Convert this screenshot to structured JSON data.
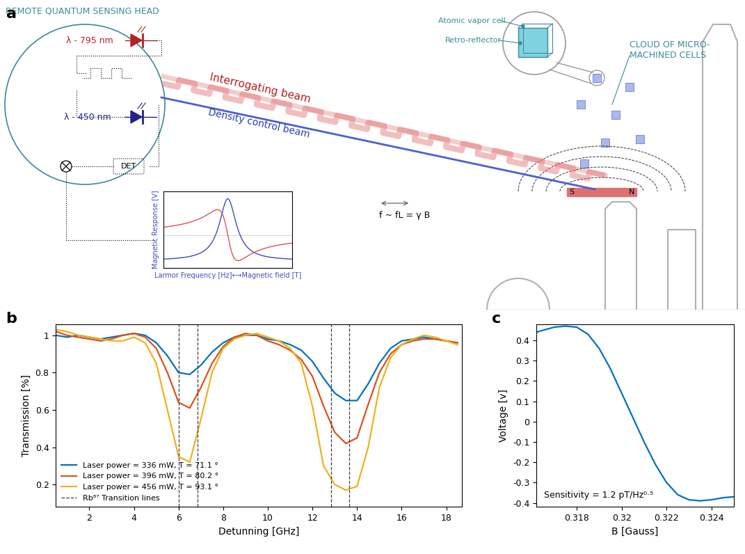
{
  "diagram": {
    "panel": "a",
    "sensing_head": {
      "title": "REMOTE QUANTUM SENSING HEAD",
      "laser_red": "λ - 795 nm",
      "laser_blue": "λ - 450 nm",
      "detector": "DET"
    },
    "beams": {
      "interrogating": "Interrogating beam",
      "density_control": "Density control beam",
      "frequency": "f ~ fL = γ B"
    },
    "inset": {
      "y_label": "Magnetic Response [V]",
      "x_label": "Larmor Frequency [Hz]⟷Magnetic field [T]"
    },
    "cell": {
      "vapor_cell": "Atomic vapor cell",
      "retro_reflector": "Retro-reflector",
      "cloud": "CLOUD OF MICRO-\nMACHINED CELLS"
    },
    "magnet": {
      "south": "S",
      "north": "N"
    }
  },
  "chart_data": [
    {
      "panel": "b",
      "type": "line",
      "x_label": "Detunning [GHz]",
      "y_label": "Transmission [%]",
      "xlim": [
        0.5,
        18.7
      ],
      "ylim": [
        0.08,
        1.06
      ],
      "xticks": [
        2,
        4,
        6,
        8,
        10,
        12,
        14,
        16,
        18
      ],
      "yticks": [
        0.2,
        0.4,
        0.6,
        0.8,
        1
      ],
      "legend": "lower left",
      "x": [
        0.5,
        1,
        1.5,
        2,
        2.5,
        3,
        3.5,
        4,
        4.5,
        5,
        5.5,
        6,
        6.5,
        7,
        7.5,
        8,
        8.5,
        9,
        9.5,
        10,
        10.5,
        11,
        11.5,
        12,
        12.5,
        13,
        13.5,
        14,
        14.5,
        15,
        15.5,
        16,
        16.5,
        17,
        17.5,
        18,
        18.5
      ],
      "series": [
        {
          "name": "Laser power = 336 mW, T = 71.1 °",
          "color": "#0072BD",
          "values": [
            1.0,
            0.99,
            1.0,
            0.99,
            0.98,
            0.99,
            1.0,
            1.01,
            1.0,
            0.96,
            0.89,
            0.8,
            0.79,
            0.84,
            0.91,
            0.96,
            0.99,
            1.0,
            1.0,
            0.98,
            0.97,
            0.95,
            0.92,
            0.86,
            0.77,
            0.69,
            0.65,
            0.65,
            0.74,
            0.85,
            0.93,
            0.97,
            0.98,
            0.99,
            0.98,
            0.97,
            0.96
          ]
        },
        {
          "name": "Laser power = 396 mW, T = 80.2 °",
          "color": "#D95319",
          "values": [
            1.02,
            1.0,
            0.99,
            0.98,
            0.97,
            0.98,
            1.0,
            1.01,
            0.99,
            0.93,
            0.8,
            0.64,
            0.61,
            0.72,
            0.85,
            0.94,
            0.99,
            1.01,
            1.0,
            0.97,
            0.95,
            0.92,
            0.87,
            0.78,
            0.62,
            0.48,
            0.42,
            0.45,
            0.63,
            0.8,
            0.9,
            0.95,
            0.97,
            0.98,
            0.98,
            0.97,
            0.96
          ]
        },
        {
          "name": "Laser power = 456 mW, T = 93.1 °",
          "color": "#EDB120",
          "values": [
            1.03,
            1.02,
            1.0,
            0.99,
            0.98,
            0.97,
            0.97,
            0.99,
            0.96,
            0.85,
            0.6,
            0.35,
            0.32,
            0.55,
            0.8,
            0.93,
            0.98,
            1.0,
            1.01,
            0.99,
            0.97,
            0.93,
            0.85,
            0.62,
            0.3,
            0.2,
            0.17,
            0.19,
            0.4,
            0.72,
            0.88,
            0.95,
            0.98,
            1.0,
            0.99,
            0.97,
            0.95
          ]
        },
        {
          "name": "Rb⁸⁷ Transition lines",
          "type": "vline",
          "color": "#404040",
          "line_style": "dashed",
          "x": [
            6.0,
            6.85,
            12.85,
            13.65
          ]
        }
      ]
    },
    {
      "panel": "c",
      "type": "line",
      "x_label": "B [Gauss]",
      "y_label": "Voltage [v]",
      "xlim": [
        0.3162,
        0.325
      ],
      "ylim": [
        -0.42,
        0.48
      ],
      "xticks": [
        0.318,
        0.32,
        0.322,
        0.324
      ],
      "yticks": [
        -0.4,
        -0.3,
        -0.2,
        -0.1,
        0,
        0.1,
        0.2,
        0.3,
        0.4
      ],
      "annotation": "Sensitivity = 1.2 pT/Hz⁰·⁵",
      "x": [
        0.3162,
        0.3165,
        0.317,
        0.3175,
        0.318,
        0.3185,
        0.319,
        0.3195,
        0.32,
        0.3205,
        0.321,
        0.3215,
        0.322,
        0.3225,
        0.323,
        0.3235,
        0.324,
        0.3245,
        0.325
      ],
      "series": [
        {
          "color": "#0072BD",
          "values": [
            0.44,
            0.45,
            0.465,
            0.47,
            0.465,
            0.43,
            0.36,
            0.26,
            0.14,
            0.02,
            -0.1,
            -0.21,
            -0.3,
            -0.36,
            -0.385,
            -0.39,
            -0.385,
            -0.375,
            -0.37
          ]
        }
      ]
    }
  ]
}
